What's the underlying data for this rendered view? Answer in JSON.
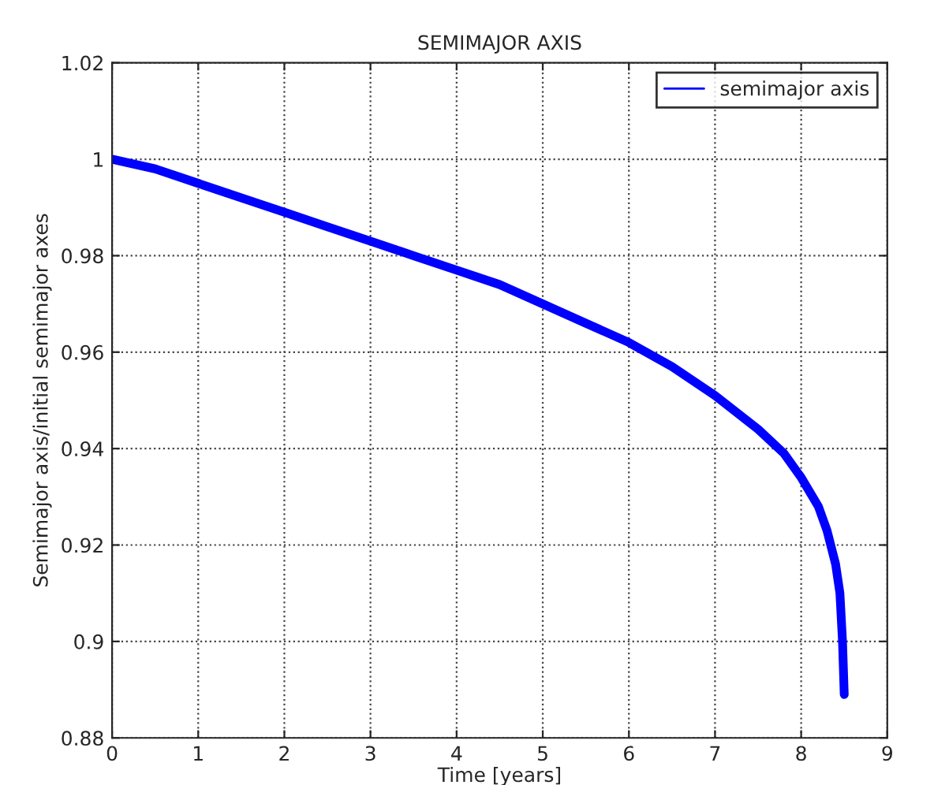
{
  "chart_data": {
    "type": "line",
    "title": "SEMIMAJOR AXIS",
    "xlabel": "Time [years]",
    "ylabel": "Semimajor axis/initial semimajor axes",
    "series": [
      {
        "name": "semimajor axis",
        "color": "#0000ff",
        "x": [
          0,
          0.5,
          1,
          1.5,
          2,
          2.5,
          3,
          3.5,
          4,
          4.5,
          5,
          5.5,
          6,
          6.5,
          7,
          7.5,
          7.8,
          8,
          8.2,
          8.3,
          8.4,
          8.45,
          8.48,
          8.5
        ],
        "values": [
          1.0,
          0.998,
          0.995,
          0.992,
          0.989,
          0.986,
          0.983,
          0.98,
          0.977,
          0.974,
          0.97,
          0.966,
          0.962,
          0.957,
          0.951,
          0.944,
          0.939,
          0.934,
          0.928,
          0.923,
          0.916,
          0.91,
          0.9,
          0.889
        ]
      }
    ],
    "xlim": [
      0,
      9
    ],
    "xticks": [
      0,
      1,
      2,
      3,
      4,
      5,
      6,
      7,
      8,
      9
    ],
    "ylim": [
      0.88,
      1.02
    ],
    "yticks": [
      0.88,
      0.9,
      0.92,
      0.94,
      0.96,
      0.98,
      1,
      1.02
    ],
    "grid": true,
    "legend": "top right",
    "line_style": "solid",
    "marker": "none"
  }
}
